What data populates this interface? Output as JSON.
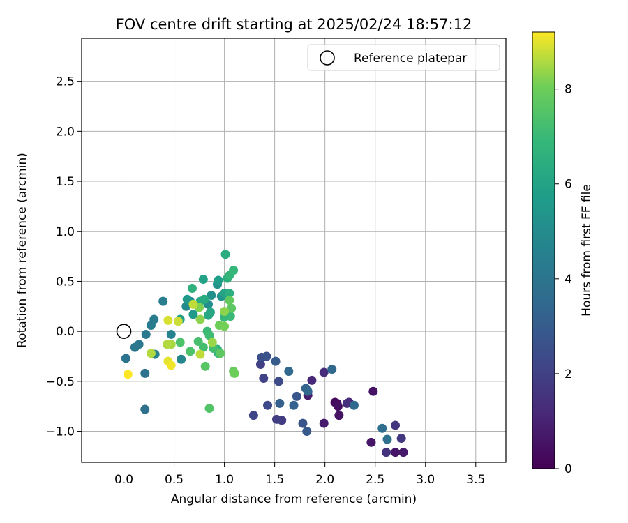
{
  "chart_data": {
    "type": "scatter",
    "title": "FOV centre drift starting at 2025/02/24 18:57:12",
    "xlabel": "Angular distance from reference (arcmin)",
    "ylabel": "Rotation from reference (arcmin)",
    "xlim": [
      -0.42,
      3.8
    ],
    "ylim": [
      -1.31,
      2.93
    ],
    "xticks": [
      "0.0",
      "0.5",
      "1.0",
      "1.5",
      "2.0",
      "2.5",
      "3.0",
      "3.5"
    ],
    "yticks": [
      "−1.0",
      "−0.5",
      "0.0",
      "0.5",
      "1.0",
      "1.5",
      "2.0",
      "2.5"
    ],
    "grid": true,
    "legend": {
      "placement": "top-right",
      "entries": [
        "Reference platepar"
      ]
    },
    "reference_point": {
      "x": 0.0,
      "y": 0.0
    },
    "colorbar": {
      "label": "Hours from first FF file",
      "range": [
        0,
        9.2
      ],
      "ticks": [
        "0",
        "2",
        "4",
        "6",
        "8"
      ],
      "colormap": "viridis"
    },
    "points": [
      {
        "x": 2.1,
        "y": -0.71,
        "h": 0.2
      },
      {
        "x": 2.12,
        "y": -0.72,
        "h": 0.3
      },
      {
        "x": 2.13,
        "y": -0.75,
        "h": 0.4
      },
      {
        "x": 2.14,
        "y": -0.84,
        "h": 0.5
      },
      {
        "x": 2.48,
        "y": -0.6,
        "h": 0.5
      },
      {
        "x": 2.46,
        "y": -1.11,
        "h": 0.6
      },
      {
        "x": 2.7,
        "y": -1.21,
        "h": 0.6
      },
      {
        "x": 2.78,
        "y": -1.21,
        "h": 0.7
      },
      {
        "x": 1.99,
        "y": -0.92,
        "h": 0.8
      },
      {
        "x": 1.83,
        "y": -0.64,
        "h": 0.8
      },
      {
        "x": 2.24,
        "y": -0.71,
        "h": 1.1
      },
      {
        "x": 1.87,
        "y": -0.49,
        "h": 1.2
      },
      {
        "x": 1.99,
        "y": -0.41,
        "h": 1.3
      },
      {
        "x": 2.22,
        "y": -0.72,
        "h": 1.4
      },
      {
        "x": 2.61,
        "y": -1.21,
        "h": 1.5
      },
      {
        "x": 2.7,
        "y": -0.94,
        "h": 1.6
      },
      {
        "x": 2.76,
        "y": -1.07,
        "h": 1.7
      },
      {
        "x": 1.57,
        "y": -0.89,
        "h": 1.8
      },
      {
        "x": 1.52,
        "y": -0.88,
        "h": 1.9
      },
      {
        "x": 1.36,
        "y": -0.33,
        "h": 2.0
      },
      {
        "x": 1.39,
        "y": -0.47,
        "h": 2.1
      },
      {
        "x": 1.29,
        "y": -0.84,
        "h": 2.2
      },
      {
        "x": 1.43,
        "y": -0.74,
        "h": 2.3
      },
      {
        "x": 1.54,
        "y": -0.5,
        "h": 2.4
      },
      {
        "x": 1.37,
        "y": -0.26,
        "h": 2.5
      },
      {
        "x": 1.42,
        "y": -0.25,
        "h": 2.6
      },
      {
        "x": 1.78,
        "y": -0.92,
        "h": 2.7
      },
      {
        "x": 1.72,
        "y": -0.65,
        "h": 2.8
      },
      {
        "x": 1.82,
        "y": -1.0,
        "h": 2.9
      },
      {
        "x": 1.51,
        "y": -0.3,
        "h": 3.0
      },
      {
        "x": 1.55,
        "y": -0.72,
        "h": 3.1
      },
      {
        "x": 1.69,
        "y": -0.74,
        "h": 3.2
      },
      {
        "x": 1.81,
        "y": -0.57,
        "h": 3.3
      },
      {
        "x": 1.83,
        "y": -0.6,
        "h": 3.4
      },
      {
        "x": 1.64,
        "y": -0.4,
        "h": 3.5
      },
      {
        "x": 2.07,
        "y": -0.38,
        "h": 3.5
      },
      {
        "x": 2.29,
        "y": -0.74,
        "h": 3.6
      },
      {
        "x": 2.57,
        "y": -0.97,
        "h": 3.7
      },
      {
        "x": 2.62,
        "y": -1.08,
        "h": 3.8
      },
      {
        "x": 0.21,
        "y": -0.78,
        "h": 3.8
      },
      {
        "x": 0.21,
        "y": -0.42,
        "h": 3.9
      },
      {
        "x": 0.02,
        "y": -0.27,
        "h": 4.0
      },
      {
        "x": 0.11,
        "y": -0.16,
        "h": 4.1
      },
      {
        "x": 0.15,
        "y": -0.13,
        "h": 4.1
      },
      {
        "x": 0.22,
        "y": -0.03,
        "h": 4.2
      },
      {
        "x": 0.27,
        "y": 0.06,
        "h": 4.3
      },
      {
        "x": 0.3,
        "y": 0.12,
        "h": 4.3
      },
      {
        "x": 0.39,
        "y": 0.3,
        "h": 4.4
      },
      {
        "x": 0.31,
        "y": -0.23,
        "h": 4.5
      },
      {
        "x": 0.47,
        "y": -0.03,
        "h": 4.6
      },
      {
        "x": 0.57,
        "y": -0.28,
        "h": 4.8
      },
      {
        "x": 0.62,
        "y": 0.25,
        "h": 4.9
      },
      {
        "x": 0.66,
        "y": 0.3,
        "h": 5.0
      },
      {
        "x": 0.84,
        "y": 0.27,
        "h": 5.1
      },
      {
        "x": 0.87,
        "y": 0.36,
        "h": 5.2
      },
      {
        "x": 0.93,
        "y": 0.47,
        "h": 5.3
      },
      {
        "x": 0.97,
        "y": 0.35,
        "h": 5.4
      },
      {
        "x": 0.63,
        "y": 0.32,
        "h": 5.5
      },
      {
        "x": 0.69,
        "y": 0.17,
        "h": 5.6
      },
      {
        "x": 0.56,
        "y": 0.12,
        "h": 5.7
      },
      {
        "x": 0.94,
        "y": 0.51,
        "h": 5.8
      },
      {
        "x": 0.79,
        "y": 0.52,
        "h": 5.9
      },
      {
        "x": 1.0,
        "y": 0.38,
        "h": 6.0
      },
      {
        "x": 0.86,
        "y": 0.19,
        "h": 6.1
      },
      {
        "x": 0.84,
        "y": 0.16,
        "h": 6.2
      },
      {
        "x": 0.76,
        "y": 0.3,
        "h": 6.3
      },
      {
        "x": 0.8,
        "y": 0.32,
        "h": 6.3
      },
      {
        "x": 1.01,
        "y": 0.77,
        "h": 6.4
      },
      {
        "x": 1.03,
        "y": 0.53,
        "h": 6.5
      },
      {
        "x": 1.05,
        "y": 0.38,
        "h": 6.5
      },
      {
        "x": 0.68,
        "y": 0.43,
        "h": 6.6
      },
      {
        "x": 0.93,
        "y": -0.18,
        "h": 6.6
      },
      {
        "x": 0.94,
        "y": -0.22,
        "h": 6.7
      },
      {
        "x": 1.05,
        "y": 0.56,
        "h": 6.8
      },
      {
        "x": 1.09,
        "y": 0.61,
        "h": 6.9
      },
      {
        "x": 1.0,
        "y": 0.14,
        "h": 6.9
      },
      {
        "x": 1.06,
        "y": 0.15,
        "h": 7.0
      },
      {
        "x": 0.83,
        "y": 0.0,
        "h": 7.0
      },
      {
        "x": 0.85,
        "y": -0.04,
        "h": 7.1
      },
      {
        "x": 0.89,
        "y": -0.17,
        "h": 7.2
      },
      {
        "x": 0.79,
        "y": -0.16,
        "h": 7.2
      },
      {
        "x": 0.74,
        "y": -0.1,
        "h": 7.3
      },
      {
        "x": 0.66,
        "y": -0.2,
        "h": 7.4
      },
      {
        "x": 0.56,
        "y": -0.11,
        "h": 7.4
      },
      {
        "x": 0.85,
        "y": -0.77,
        "h": 7.5
      },
      {
        "x": 0.81,
        "y": -0.35,
        "h": 7.6
      },
      {
        "x": 0.96,
        "y": -0.22,
        "h": 7.7
      },
      {
        "x": 1.07,
        "y": 0.23,
        "h": 7.7
      },
      {
        "x": 1.05,
        "y": 0.31,
        "h": 7.8
      },
      {
        "x": 1.09,
        "y": -0.4,
        "h": 7.9
      },
      {
        "x": 1.1,
        "y": -0.42,
        "h": 8.0
      },
      {
        "x": 0.95,
        "y": 0.06,
        "h": 8.0
      },
      {
        "x": 1.0,
        "y": 0.05,
        "h": 8.1
      },
      {
        "x": 0.75,
        "y": 0.24,
        "h": 8.2
      },
      {
        "x": 0.76,
        "y": 0.12,
        "h": 8.3
      },
      {
        "x": 1.0,
        "y": 0.2,
        "h": 8.3
      },
      {
        "x": 0.88,
        "y": -0.11,
        "h": 8.4
      },
      {
        "x": 0.47,
        "y": -0.13,
        "h": 8.5
      },
      {
        "x": 0.43,
        "y": -0.13,
        "h": 8.6
      },
      {
        "x": 0.27,
        "y": -0.22,
        "h": 8.6
      },
      {
        "x": 0.76,
        "y": -0.23,
        "h": 8.7
      },
      {
        "x": 0.69,
        "y": 0.27,
        "h": 8.7
      },
      {
        "x": 0.54,
        "y": 0.1,
        "h": 8.8
      },
      {
        "x": 0.44,
        "y": 0.11,
        "h": 8.9
      },
      {
        "x": 0.44,
        "y": -0.3,
        "h": 9.0
      },
      {
        "x": 0.47,
        "y": -0.34,
        "h": 9.1
      },
      {
        "x": 0.04,
        "y": -0.43,
        "h": 9.2
      }
    ]
  }
}
